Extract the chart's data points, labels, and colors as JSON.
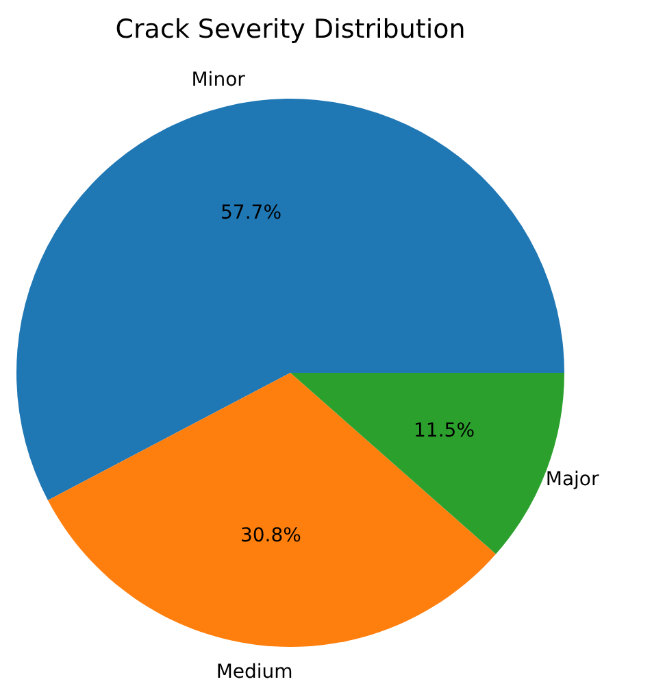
{
  "chart_data": {
    "type": "pie",
    "title": "Crack Severity Distribution",
    "categories": [
      "Minor",
      "Medium",
      "Major"
    ],
    "values": [
      57.7,
      30.8,
      11.5
    ],
    "value_labels": [
      "57.7%",
      "30.8%",
      "11.5%"
    ],
    "colors": [
      "#1f77b4",
      "#ff7f0e",
      "#2ca02c"
    ]
  }
}
